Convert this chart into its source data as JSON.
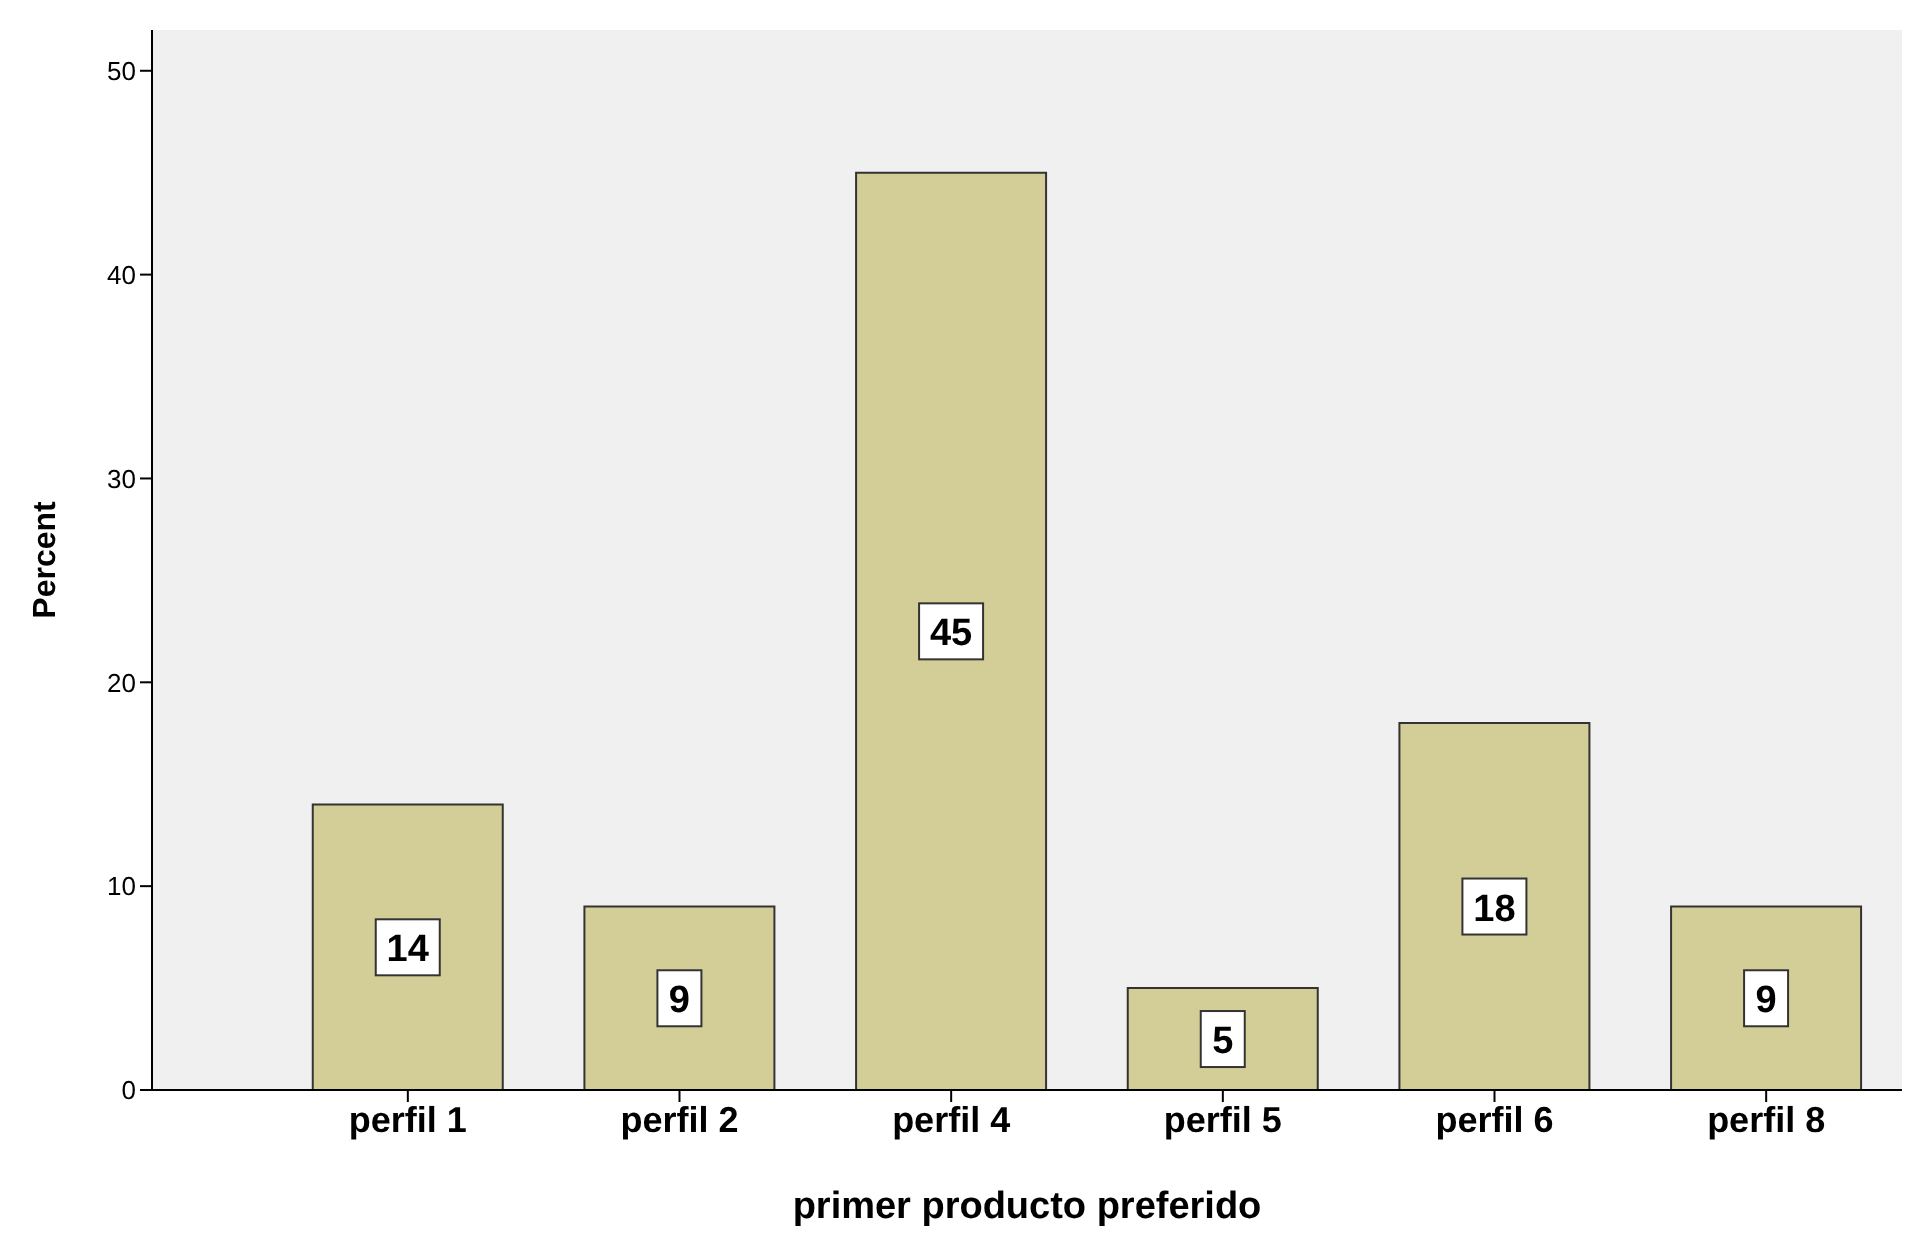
{
  "chart_data": {
    "type": "bar",
    "xlabel": "primer producto preferido",
    "ylabel": "Percent",
    "categories": [
      "perfil 1",
      "perfil 2",
      "perfil 4",
      "perfil 5",
      "perfil 6",
      "perfil 8"
    ],
    "values": [
      14,
      9,
      45,
      5,
      18,
      9
    ],
    "color": "#d3ce97",
    "ylim": [
      0,
      52
    ],
    "yticks": [
      0,
      10,
      20,
      30,
      40,
      50
    ],
    "grid": false,
    "data_labels": true
  }
}
